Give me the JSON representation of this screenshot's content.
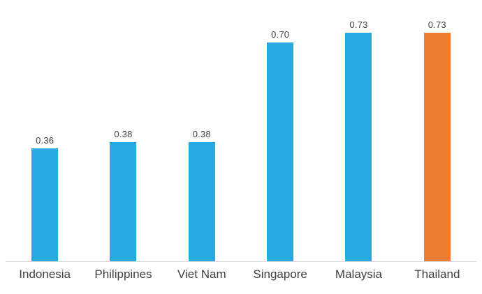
{
  "chart_data": {
    "type": "bar",
    "categories": [
      "Indonesia",
      "Philippines",
      "Viet Nam",
      "Singapore",
      "Malaysia",
      "Thailand"
    ],
    "values": [
      0.36,
      0.38,
      0.38,
      0.7,
      0.73,
      0.73
    ],
    "value_labels": [
      "0.36",
      "0.38",
      "0.38",
      "0.70",
      "0.73",
      "0.73"
    ],
    "title": "",
    "xlabel": "",
    "ylabel": "",
    "ylim": [
      0,
      0.8
    ],
    "grid": false,
    "legend": "none",
    "colors": {
      "default_bar": "#27aae1",
      "highlight_bar": "#ed7d31",
      "highlight_category": "Thailand",
      "baseline": "#d9d9d9",
      "label_text": "#404040"
    }
  }
}
